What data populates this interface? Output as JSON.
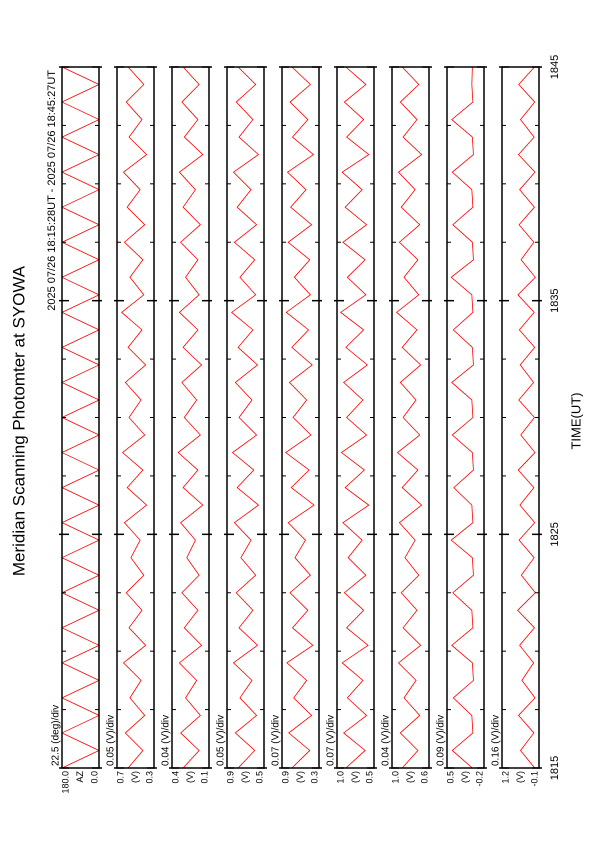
{
  "chart_data": {
    "type": "line",
    "title": "Meridian Scanning Photomter at SYOWA",
    "subtitle": "2025 07/26 18:15:28UT - 2025 07/26 18:45:27UT",
    "xlabel": "TIME(UT)",
    "color": "#ff0000",
    "xlim": [
      1815,
      1845
    ],
    "xticks": [
      1815,
      1825,
      1835,
      1845
    ],
    "xminor": [
      1817.5,
      1820,
      1822.5,
      1827.5,
      1830,
      1832.5,
      1837.5,
      1840,
      1842.5
    ],
    "x": [
      1815,
      1815.75,
      1816.5,
      1817.25,
      1818,
      1818.75,
      1819.5,
      1820.25,
      1821,
      1821.75,
      1822.5,
      1823.25,
      1824,
      1824.75,
      1825.5,
      1826.25,
      1827,
      1827.75,
      1828.5,
      1829.25,
      1830,
      1830.75,
      1831.5,
      1832.25,
      1833,
      1833.75,
      1834.5,
      1835.25,
      1836,
      1836.75,
      1837.5,
      1838.25,
      1839,
      1839.75,
      1840.5,
      1841.25,
      1842,
      1842.75,
      1843.5,
      1844.25,
      1845
    ],
    "panels": [
      {
        "scale": "22.5 (deg)/div",
        "ylabel": "AZ",
        "ylim": [
          0,
          180
        ],
        "yticks": [
          {
            "value": 0,
            "label": "0.0"
          },
          {
            "value": 180,
            "label": "180.0"
          }
        ],
        "values": [
          180,
          0,
          180,
          0,
          180,
          0,
          180,
          0,
          180,
          0,
          180,
          0,
          180,
          0,
          180,
          0,
          180,
          0,
          180,
          0,
          180,
          0,
          180,
          0,
          180,
          0,
          180,
          0,
          180,
          0,
          180,
          0,
          180,
          0,
          180,
          0,
          180,
          0,
          180,
          0,
          180
        ]
      },
      {
        "scale": "0.05 (V)/div",
        "ylabel": "(V)",
        "ylim": [
          0.3,
          0.7
        ],
        "yticks": [
          0.3,
          0.7
        ],
        "values": [
          0.58,
          0.42,
          0.61,
          0.4,
          0.56,
          0.44,
          0.63,
          0.39,
          0.57,
          0.43,
          0.6,
          0.41,
          0.55,
          0.45,
          0.62,
          0.38,
          0.59,
          0.42,
          0.64,
          0.4,
          0.57,
          0.44,
          0.61,
          0.39,
          0.58,
          0.43,
          0.65,
          0.41,
          0.56,
          0.42,
          0.62,
          0.4,
          0.59,
          0.45,
          0.63,
          0.38,
          0.57,
          0.43,
          0.6,
          0.41,
          0.58
        ]
      },
      {
        "scale": "0.04 (V)/div",
        "ylabel": "(V)",
        "ylim": [
          0.1,
          0.4
        ],
        "yticks": [
          0.1,
          0.4
        ],
        "values": [
          0.31,
          0.18,
          0.33,
          0.17,
          0.29,
          0.2,
          0.34,
          0.16,
          0.3,
          0.19,
          0.32,
          0.18,
          0.28,
          0.21,
          0.33,
          0.15,
          0.31,
          0.19,
          0.35,
          0.17,
          0.3,
          0.2,
          0.32,
          0.16,
          0.31,
          0.19,
          0.34,
          0.18,
          0.29,
          0.19,
          0.33,
          0.17,
          0.31,
          0.21,
          0.34,
          0.15,
          0.3,
          0.19,
          0.32,
          0.18,
          0.31
        ]
      },
      {
        "scale": "0.05 (V)/div",
        "ylabel": "(V)",
        "ylim": [
          0.5,
          0.9
        ],
        "yticks": [
          0.5,
          0.9
        ],
        "values": [
          0.78,
          0.6,
          0.81,
          0.58,
          0.76,
          0.63,
          0.83,
          0.57,
          0.77,
          0.62,
          0.8,
          0.59,
          0.75,
          0.64,
          0.82,
          0.56,
          0.79,
          0.61,
          0.84,
          0.58,
          0.77,
          0.63,
          0.81,
          0.57,
          0.78,
          0.62,
          0.85,
          0.59,
          0.76,
          0.6,
          0.82,
          0.58,
          0.79,
          0.64,
          0.83,
          0.56,
          0.77,
          0.62,
          0.8,
          0.59,
          0.78
        ]
      },
      {
        "scale": "0.07 (V)/div",
        "ylabel": "(V)",
        "ylim": [
          0.3,
          0.9
        ],
        "yticks": [
          0.3,
          0.9
        ],
        "values": [
          0.74,
          0.45,
          0.79,
          0.42,
          0.71,
          0.5,
          0.82,
          0.4,
          0.73,
          0.48,
          0.77,
          0.44,
          0.69,
          0.52,
          0.8,
          0.38,
          0.75,
          0.46,
          0.84,
          0.43,
          0.72,
          0.5,
          0.78,
          0.41,
          0.74,
          0.47,
          0.83,
          0.44,
          0.7,
          0.45,
          0.8,
          0.42,
          0.76,
          0.51,
          0.81,
          0.39,
          0.73,
          0.48,
          0.77,
          0.44,
          0.74
        ]
      },
      {
        "scale": "0.07 (V)/div",
        "ylabel": "(V)",
        "ylim": [
          0.5,
          1.0
        ],
        "yticks": [
          0.5,
          {
            "value": 1.0,
            "label": "1.0"
          }
        ],
        "values": [
          0.88,
          0.62,
          0.91,
          0.6,
          0.86,
          0.65,
          0.93,
          0.58,
          0.87,
          0.64,
          0.9,
          0.61,
          0.85,
          0.66,
          0.92,
          0.57,
          0.89,
          0.63,
          0.94,
          0.6,
          0.87,
          0.65,
          0.91,
          0.59,
          0.88,
          0.64,
          0.95,
          0.61,
          0.86,
          0.62,
          0.92,
          0.6,
          0.89,
          0.66,
          0.93,
          0.57,
          0.87,
          0.64,
          0.9,
          0.61,
          0.88
        ]
      },
      {
        "scale": "0.04 (V)/div",
        "ylabel": "(V)",
        "ylim": [
          0.6,
          1.0
        ],
        "yticks": [
          0.6,
          {
            "value": 1.0,
            "label": "1.0"
          }
        ],
        "values": [
          0.89,
          0.72,
          0.91,
          0.7,
          0.87,
          0.74,
          0.93,
          0.69,
          0.88,
          0.73,
          0.9,
          0.71,
          0.86,
          0.75,
          0.92,
          0.68,
          0.89,
          0.72,
          0.94,
          0.7,
          0.88,
          0.74,
          0.91,
          0.69,
          0.89,
          0.73,
          0.95,
          0.71,
          0.87,
          0.72,
          0.92,
          0.7,
          0.9,
          0.75,
          0.93,
          0.68,
          0.88,
          0.73,
          0.91,
          0.71,
          0.89
        ]
      },
      {
        "scale": "0.09 (V)/div",
        "ylabel": "(V)",
        "ylim": [
          -0.2,
          0.5
        ],
        "yticks": [
          -0.2,
          0.5
        ],
        "values": [
          0.02,
          0.4,
          0.01,
          0.03,
          0.38,
          0.0,
          0.02,
          0.41,
          0.01,
          0.03,
          0.39,
          0.0,
          0.02,
          0.42,
          0.01,
          0.03,
          0.37,
          0.0,
          0.02,
          0.4,
          0.01,
          0.03,
          0.41,
          0.0,
          0.02,
          0.38,
          0.01,
          0.03,
          0.42,
          0.0,
          0.02,
          0.39,
          0.01,
          0.03,
          0.4,
          0.0,
          0.02,
          0.41,
          0.01,
          0.03,
          0.02
        ]
      },
      {
        "scale": "0.16 (V)/div",
        "ylabel": "(V)",
        "ylim": [
          -0.1,
          1.2
        ],
        "yticks": [
          -0.1,
          1.2
        ],
        "values": [
          0.05,
          0.55,
          0.08,
          0.62,
          0.04,
          0.5,
          0.09,
          0.58,
          0.06,
          0.65,
          0.03,
          0.52,
          0.07,
          0.6,
          0.05,
          0.57,
          0.08,
          0.63,
          0.04,
          0.54,
          0.06,
          0.61,
          0.09,
          0.56,
          0.05,
          0.59,
          0.07,
          0.64,
          0.03,
          0.53,
          0.08,
          0.6,
          0.06,
          0.58,
          0.04,
          0.62,
          0.07,
          0.55,
          0.05,
          0.61,
          0.06
        ]
      }
    ]
  }
}
